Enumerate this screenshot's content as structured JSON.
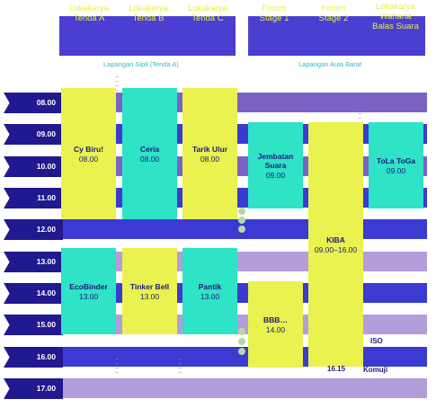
{
  "venues": [
    {
      "id": "ta",
      "label": "Lokakarya\nTenda A"
    },
    {
      "id": "tb",
      "label": "Lokakarya\nTenda B"
    },
    {
      "id": "tc",
      "label": "Lokakarya\nTenda C"
    },
    {
      "id": "fs1",
      "label": "Forum\nStage 1"
    },
    {
      "id": "fs2",
      "label": "Forum\nStage 2"
    },
    {
      "id": "lw",
      "label": "Lokakarya\nWahana\nBalas Suara"
    }
  ],
  "areas": {
    "left": "Lapangan Sipil (Tenda A)",
    "right": "Lapangan Aula Barat"
  },
  "times": [
    "08.00",
    "09.00",
    "10.00",
    "11.00",
    "12.00",
    "13.00",
    "14.00",
    "15.00",
    "16.00",
    "17.00"
  ],
  "events": {
    "cy_biru": {
      "title": "Cy Biru!",
      "time": "08.00"
    },
    "ceria": {
      "title": "Ceria",
      "time": "08.00"
    },
    "tarik_ulur": {
      "title": "Tarik Ulur",
      "time": "08.00"
    },
    "jembatan_suara": {
      "title": "Jembatan\nSuara",
      "time": "09.00"
    },
    "tola_toga": {
      "title": "ToLa ToGa",
      "time": "09.00"
    },
    "kiba": {
      "title": "KIBA",
      "time": "09.00–16.00"
    },
    "ecobinder": {
      "title": "EcoBinder",
      "time": "13.00"
    },
    "tinker_bell": {
      "title": "Tinker Bell",
      "time": "13.00"
    },
    "pantik": {
      "title": "Pantik",
      "time": "13.00"
    },
    "bbb": {
      "title": "BBB…",
      "time": "14.00"
    }
  },
  "labels": {
    "iso": "ISO",
    "komuji": "Komuji",
    "kiba_end": "16.15"
  },
  "colors": {
    "time_tag": "#20198f",
    "band_blue": "#3b3ad2",
    "band_purple": "#7b63c6",
    "card_yellow": "#e9f24f",
    "card_cyan": "#2ee3c6"
  }
}
